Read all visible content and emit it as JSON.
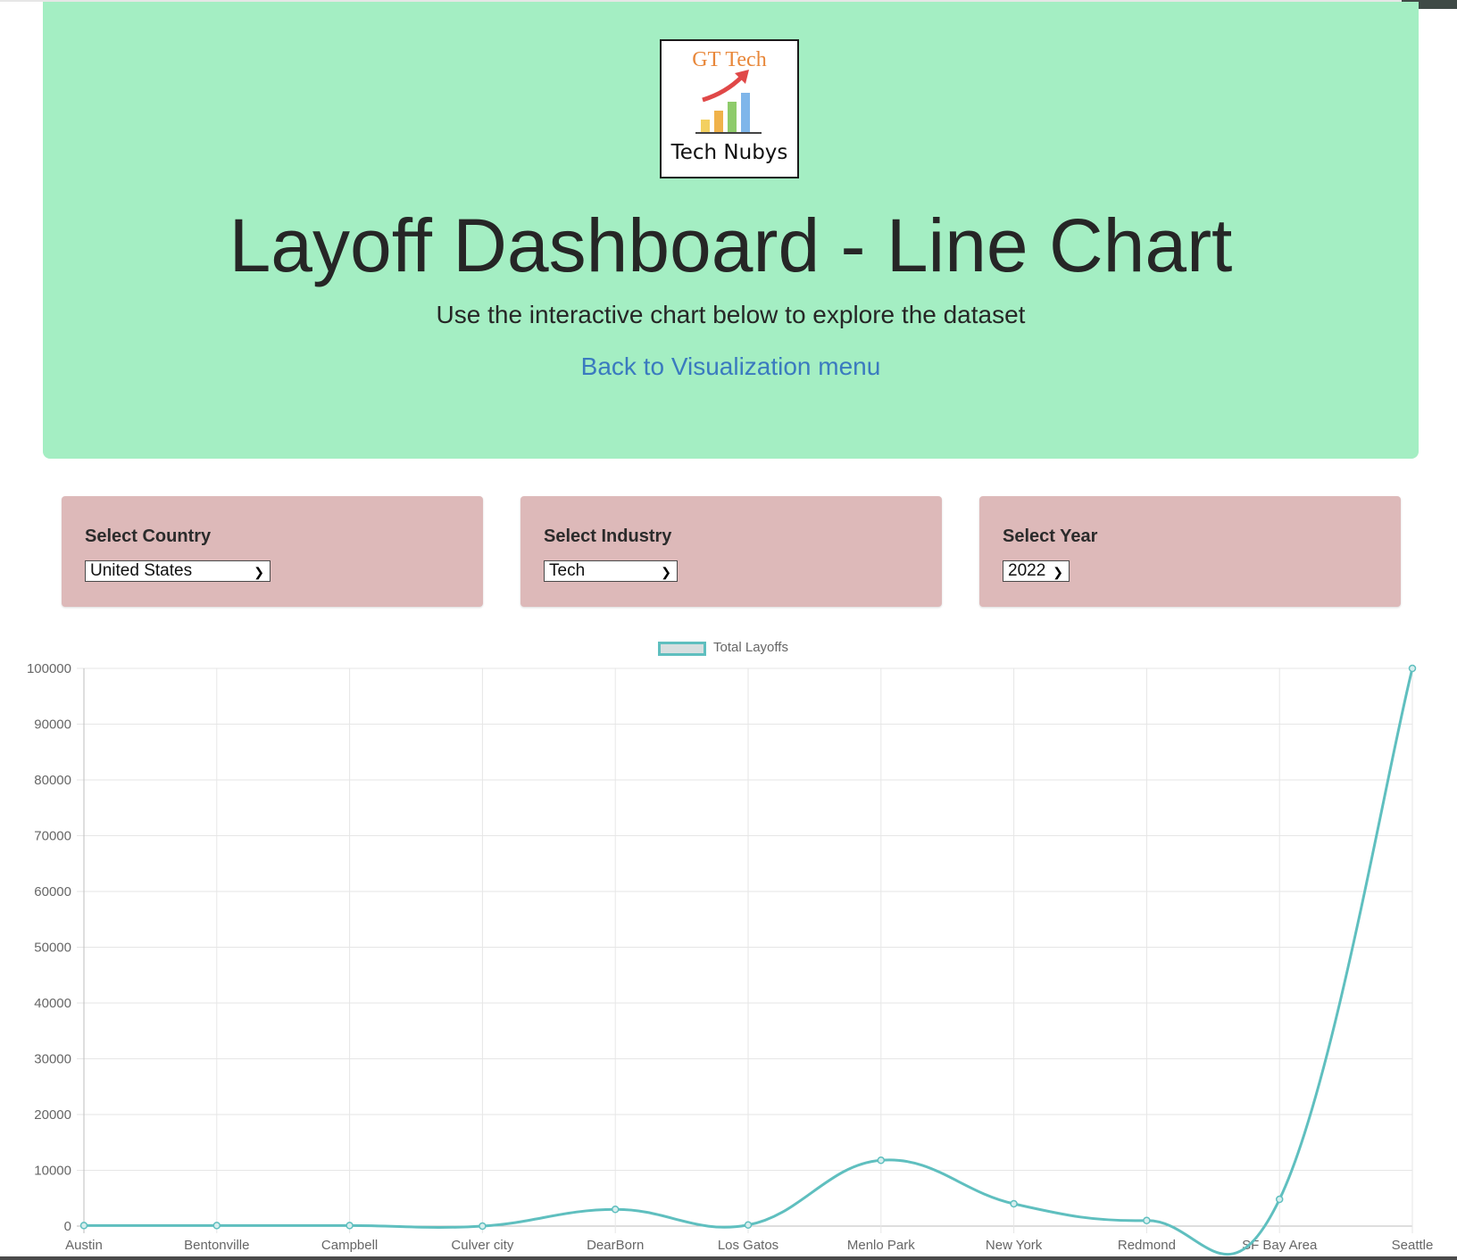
{
  "header": {
    "logo_text_top": "GT Tech",
    "logo_text_bottom": "Tech Nubys",
    "title": "Layoff Dashboard - Line Chart",
    "subtitle": "Use the interactive chart below to explore the dataset",
    "back_link": "Back to Visualization menu",
    "background_color": "#a4eec3"
  },
  "filters": [
    {
      "label": "Select Country",
      "value": "United States"
    },
    {
      "label": "Select Industry",
      "value": "Tech"
    },
    {
      "label": "Select Year",
      "value": "2022"
    }
  ],
  "chart_data": {
    "type": "line",
    "series": [
      {
        "name": "Total Layoffs",
        "color": "#5fbfbf",
        "values": [
          100,
          100,
          100,
          0,
          3000,
          200,
          11800,
          4000,
          1000,
          4800,
          100000
        ]
      }
    ],
    "categories": [
      "Austin",
      "Bentonville",
      "Campbell",
      "Culver city",
      "DearBorn",
      "Los Gatos",
      "Menlo Park",
      "New York",
      "Redmond",
      "SF Bay Area",
      "Seattle"
    ],
    "ylim": [
      0,
      100000
    ],
    "yticks": [
      "0",
      "10000",
      "20000",
      "30000",
      "40000",
      "50000",
      "60000",
      "70000",
      "80000",
      "90000",
      "100000"
    ],
    "legend_position": "top-center",
    "grid": true
  }
}
